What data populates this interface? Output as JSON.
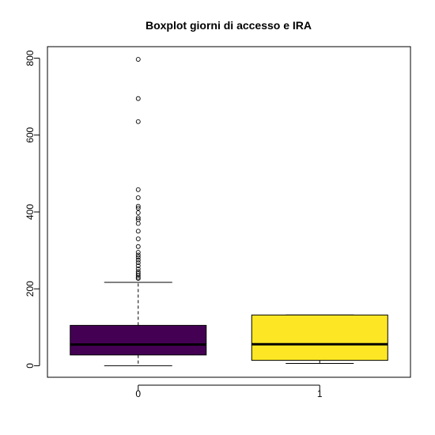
{
  "chart_data": {
    "type": "boxplot",
    "title": "Boxplot giorni di accesso e IRA",
    "xlabel": "",
    "ylabel": "",
    "categories": [
      "0",
      "1"
    ],
    "ylim": [
      -30,
      830
    ],
    "yticks": [
      0,
      200,
      400,
      600,
      800
    ],
    "grid": false,
    "boxes": [
      {
        "category": "0",
        "color": "#440154",
        "whisker_low": 0,
        "q1": 28,
        "median": 55,
        "q3": 105,
        "whisker_high": 217,
        "outliers": [
          797,
          695,
          635,
          458,
          437,
          415,
          410,
          398,
          385,
          380,
          370,
          350,
          330,
          310,
          295,
          288,
          282,
          275,
          268,
          260,
          252,
          245,
          240,
          235,
          230,
          227
        ]
      },
      {
        "category": "1",
        "color": "#FDE725",
        "whisker_low": 6,
        "q1": 14,
        "median": 56,
        "q3": 132,
        "whisker_high": 132,
        "outliers": []
      }
    ]
  }
}
